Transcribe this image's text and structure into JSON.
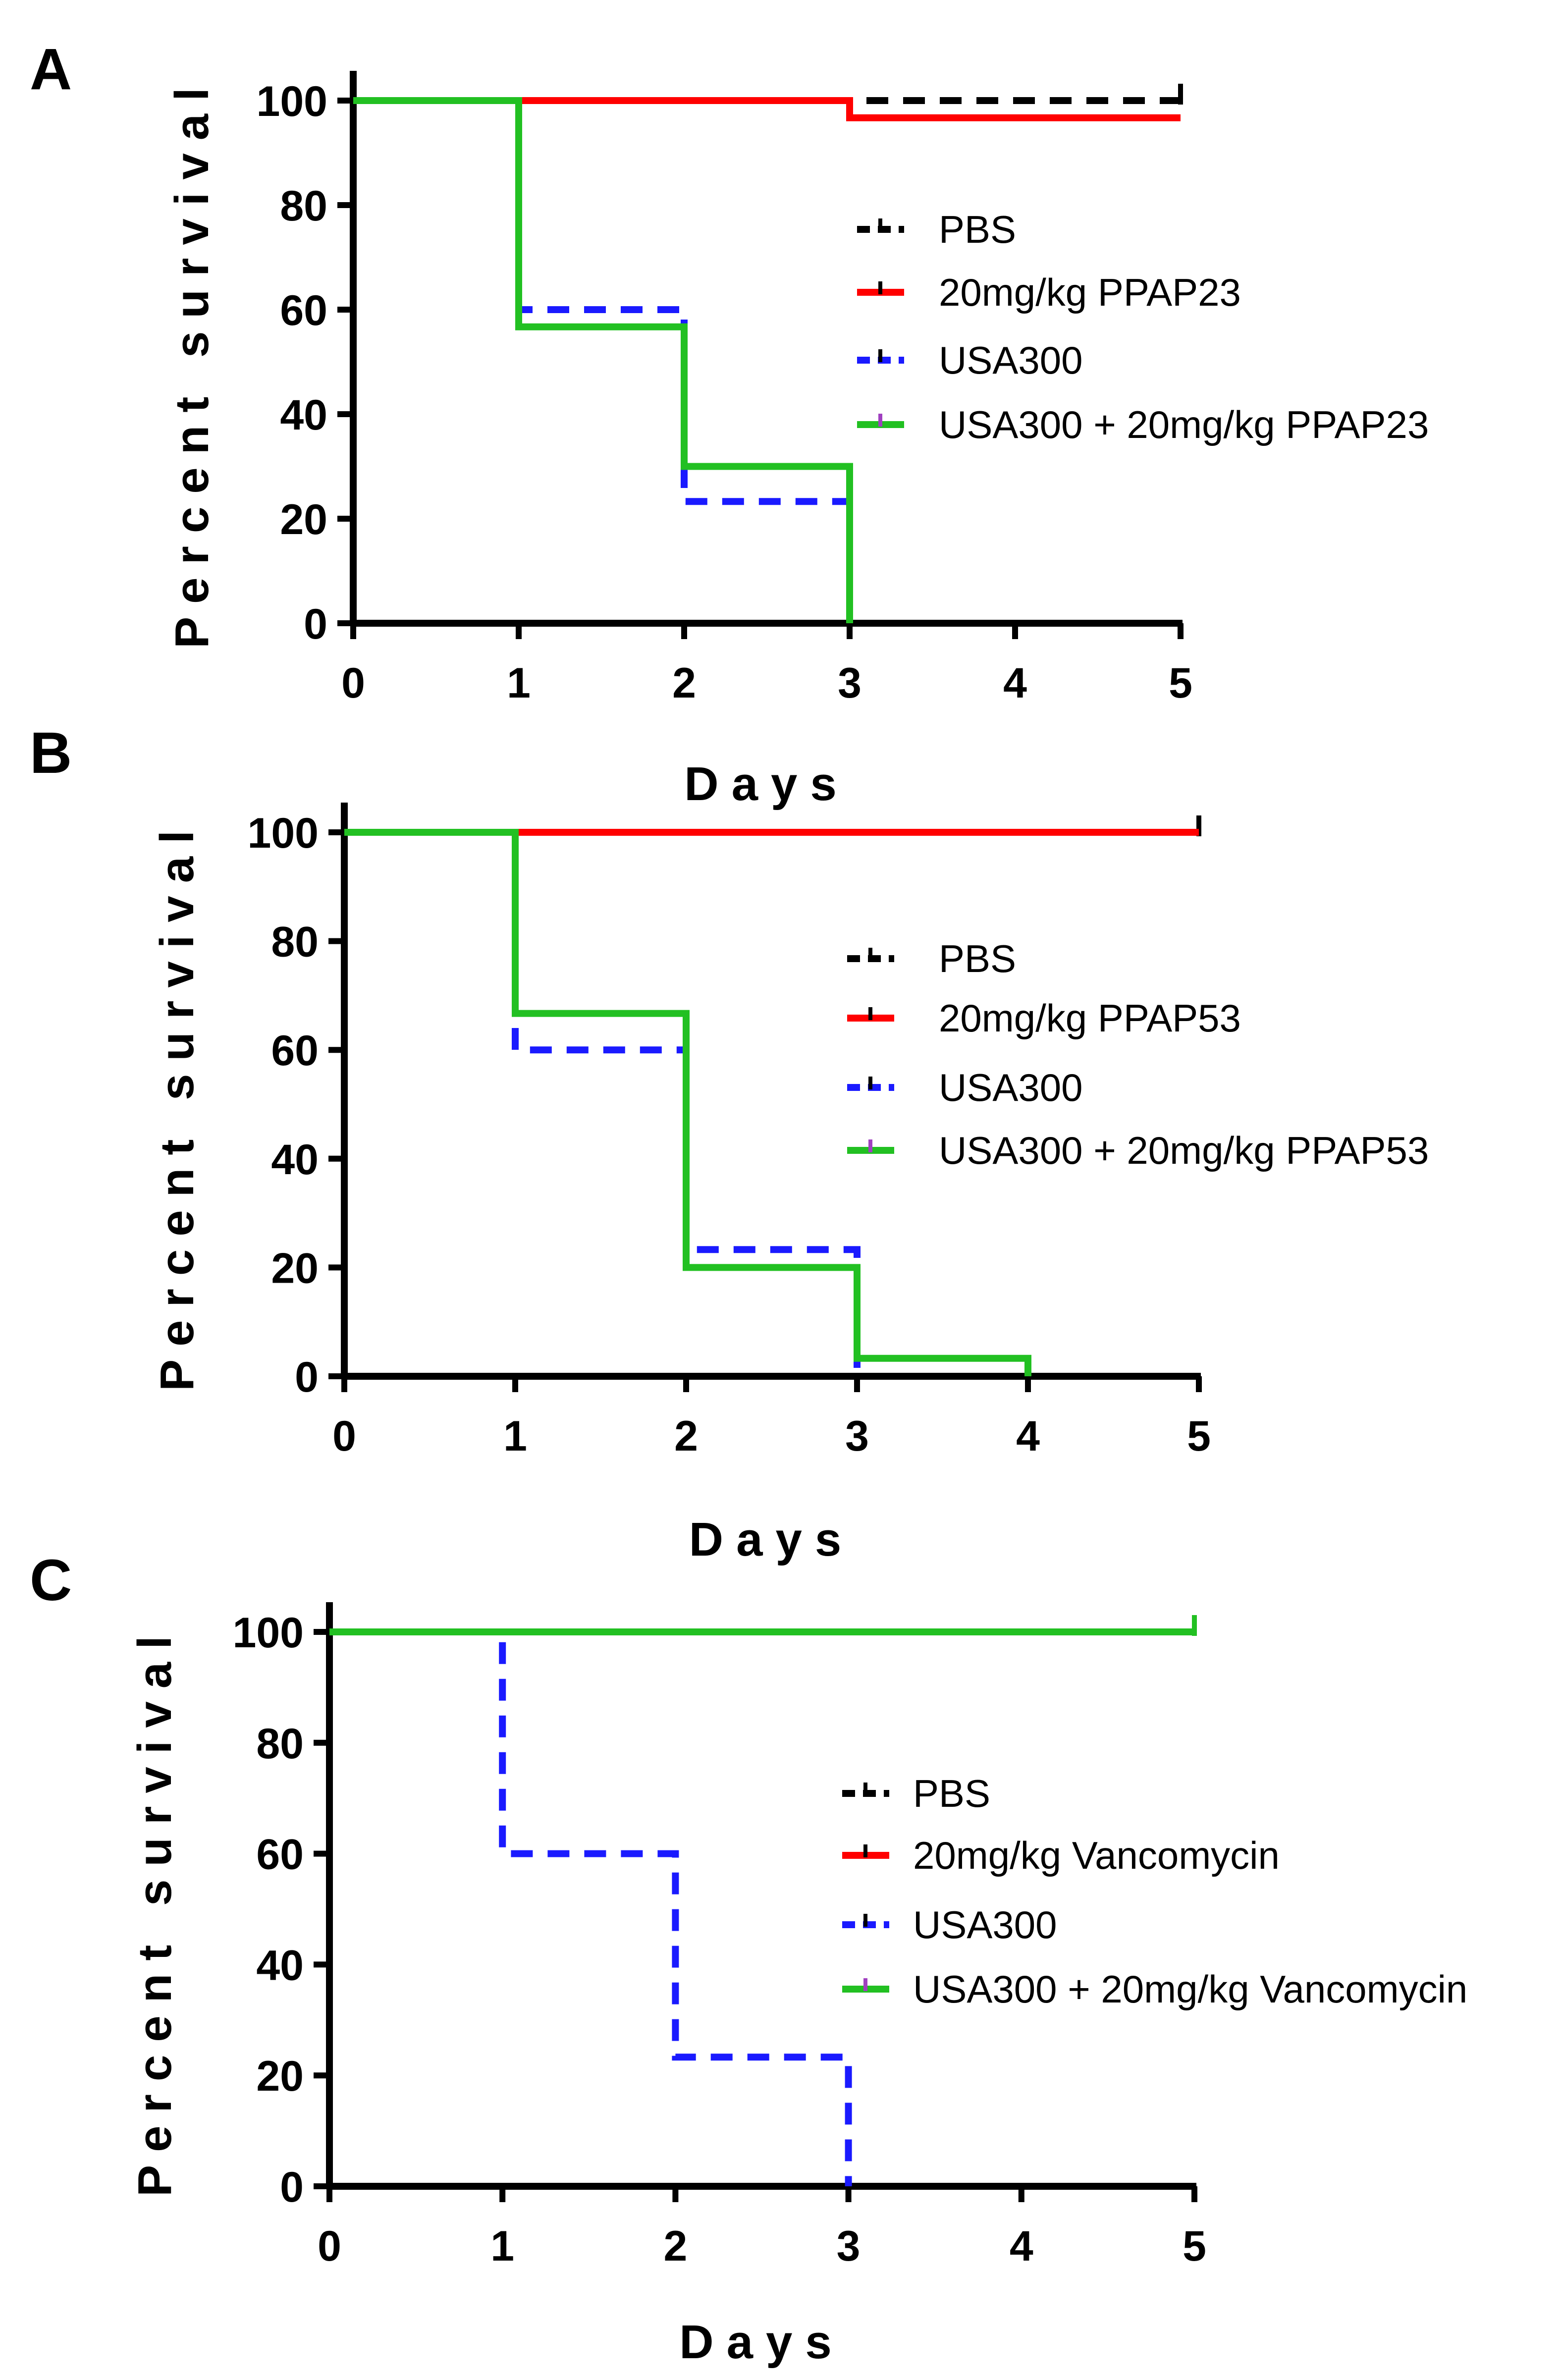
{
  "chart_data": [
    {
      "type": "line",
      "panel_label": "A",
      "title": "",
      "xlabel": "Days",
      "ylabel": "Percent survival",
      "xlim": [
        0,
        5
      ],
      "ylim": [
        0,
        100
      ],
      "x_ticks": [
        "0",
        "1",
        "2",
        "3",
        "4",
        "5"
      ],
      "y_ticks": [
        "0",
        "20",
        "40",
        "60",
        "80",
        "100"
      ],
      "legend_position": "right",
      "series": [
        {
          "name": "PBS",
          "color": "#000000",
          "style": "dashed",
          "steps": [
            [
              0,
              100
            ],
            [
              5,
              100
            ]
          ],
          "censor": [
            5
          ]
        },
        {
          "name": "20mg/kg PPAP23",
          "color": "#ff0000",
          "style": "solid",
          "steps": [
            [
              0,
              100
            ],
            [
              3,
              96.7
            ],
            [
              5,
              96.7
            ]
          ],
          "censor": []
        },
        {
          "name": "USA300",
          "color": "#1a1aff",
          "style": "dashed",
          "steps": [
            [
              0,
              100
            ],
            [
              1,
              60
            ],
            [
              2,
              23.3
            ],
            [
              3,
              0
            ]
          ],
          "censor": []
        },
        {
          "name": "USA300 + 20mg/kg PPAP23",
          "color": "#22c022",
          "style": "solid",
          "steps": [
            [
              0,
              100
            ],
            [
              1,
              56.7
            ],
            [
              2,
              30
            ],
            [
              3,
              0
            ]
          ],
          "censor": []
        }
      ]
    },
    {
      "type": "line",
      "panel_label": "B",
      "title": "",
      "xlabel": "Days",
      "ylabel": "Percent survival",
      "xlim": [
        0,
        5
      ],
      "ylim": [
        0,
        100
      ],
      "x_ticks": [
        "0",
        "1",
        "2",
        "3",
        "4",
        "5"
      ],
      "y_ticks": [
        "0",
        "20",
        "40",
        "60",
        "80",
        "100"
      ],
      "legend_position": "right",
      "series": [
        {
          "name": "PBS",
          "color": "#000000",
          "style": "dashed",
          "steps": [
            [
              0,
              100
            ],
            [
              5,
              100
            ]
          ],
          "censor": [
            5
          ]
        },
        {
          "name": "20mg/kg PPAP53",
          "color": "#ff0000",
          "style": "solid",
          "steps": [
            [
              0,
              100
            ],
            [
              5,
              100
            ]
          ],
          "censor": []
        },
        {
          "name": "USA300",
          "color": "#1a1aff",
          "style": "dashed",
          "steps": [
            [
              0,
              100
            ],
            [
              1,
              60
            ],
            [
              2,
              23.3
            ],
            [
              3,
              0
            ]
          ],
          "censor": []
        },
        {
          "name": "USA300 + 20mg/kg PPAP53",
          "color": "#22c022",
          "style": "solid",
          "steps": [
            [
              0,
              100
            ],
            [
              1,
              66.7
            ],
            [
              2,
              20
            ],
            [
              3,
              3.3
            ],
            [
              4,
              0
            ]
          ],
          "censor": []
        }
      ]
    },
    {
      "type": "line",
      "panel_label": "C",
      "title": "",
      "xlabel": "Days",
      "ylabel": "Percent survival",
      "xlim": [
        0,
        5
      ],
      "ylim": [
        0,
        100
      ],
      "x_ticks": [
        "0",
        "1",
        "2",
        "3",
        "4",
        "5"
      ],
      "y_ticks": [
        "0",
        "20",
        "40",
        "60",
        "80",
        "100"
      ],
      "legend_position": "right",
      "series": [
        {
          "name": "PBS",
          "color": "#000000",
          "style": "dashed",
          "steps": [
            [
              0,
              100
            ],
            [
              5,
              100
            ]
          ],
          "censor": [
            5
          ]
        },
        {
          "name": "20mg/kg Vancomycin",
          "color": "#ff0000",
          "style": "solid",
          "steps": [
            [
              0,
              100
            ],
            [
              5,
              100
            ]
          ],
          "censor": []
        },
        {
          "name": "USA300",
          "color": "#1a1aff",
          "style": "dashed",
          "steps": [
            [
              0,
              100
            ],
            [
              1,
              60
            ],
            [
              2,
              23.3
            ],
            [
              3,
              0
            ]
          ],
          "censor": []
        },
        {
          "name": "USA300 + 20mg/kg Vancomycin",
          "color": "#22c022",
          "style": "solid",
          "steps": [
            [
              0,
              100
            ],
            [
              5,
              100
            ]
          ],
          "censor": [
            5
          ]
        }
      ]
    }
  ]
}
